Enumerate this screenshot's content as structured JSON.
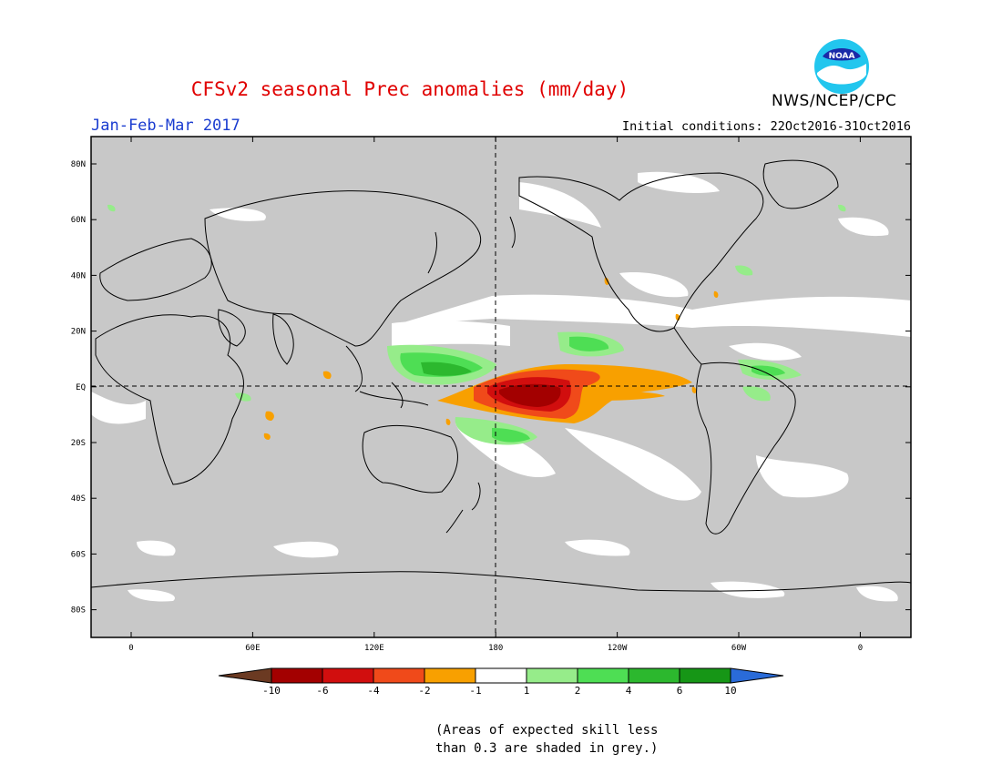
{
  "title": "CFSv2 seasonal Prec anomalies (mm/day)",
  "period": "Jan-Feb-Mar 2017",
  "initial_conditions": "Initial conditions: 22Oct2016-31Oct2016",
  "agency": "NWS/NCEP/CPC",
  "logo_text": "NOAA",
  "lat_labels": [
    "80N",
    "60N",
    "40N",
    "20N",
    "EQ",
    "20S",
    "40S",
    "60S",
    "80S"
  ],
  "lon_labels": [
    "0",
    "60E",
    "120E",
    "180",
    "120W",
    "60W",
    "0"
  ],
  "colorbar": {
    "labels": [
      "-10",
      "-6",
      "-4",
      "-2",
      "-1",
      "1",
      "2",
      "4",
      "6",
      "10"
    ],
    "colors": [
      "#6b3a22",
      "#a30000",
      "#d10e0e",
      "#f04a1a",
      "#f8a000",
      "#ffffff",
      "#96ec8a",
      "#4ede54",
      "#2cb82e",
      "#169616",
      "#2a6bd8"
    ]
  },
  "note_line1": "(Areas of expected skill less",
  "note_line2": "than 0.3 are shaded in grey.)",
  "colors": {
    "ocean_grey": "#c8c8c8",
    "title_red": "#e00000",
    "period_blue": "#1a3cd0"
  }
}
